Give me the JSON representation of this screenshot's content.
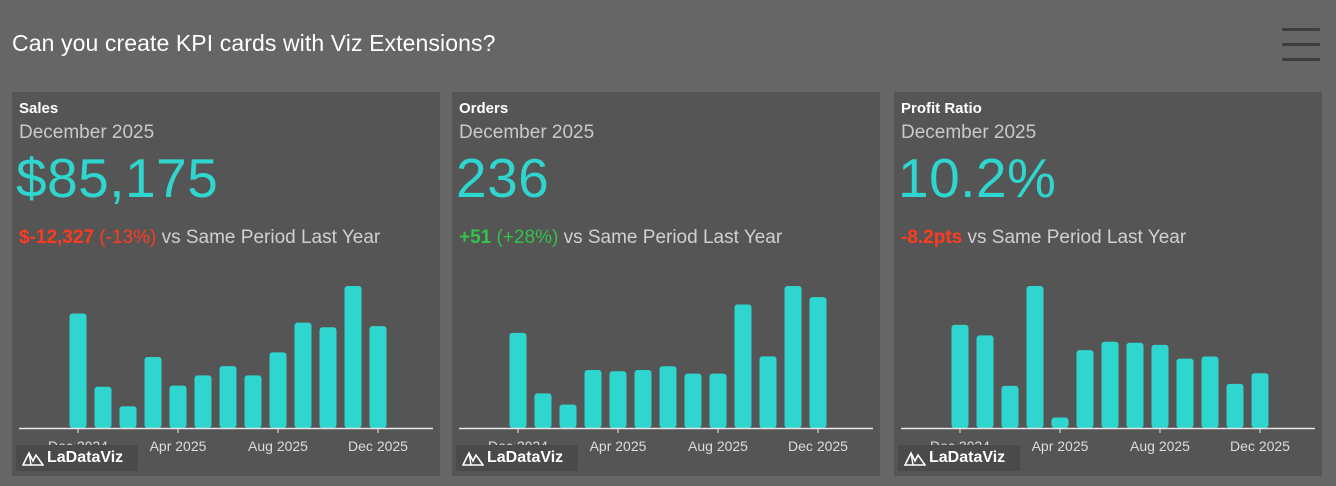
{
  "page": {
    "title": "Can you create KPI cards with Viz Extensions?"
  },
  "colors": {
    "background": "#666666",
    "card": "#555555",
    "accent": "#2fd6cf",
    "negative": "#ff3b1f",
    "positive": "#33c24a"
  },
  "icons": {
    "menu": "hamburger-icon",
    "logo": "ladataviz-logo-icon"
  },
  "logo_text": "LaDataViz",
  "cards": [
    {
      "title": "Sales",
      "period": "December 2025",
      "value": "$85,175",
      "delta_abs": "$-12,327",
      "delta_pct": " (-13%)",
      "delta_suffix": " vs Same Period Last Year",
      "delta_color": "#ff3b1f"
    },
    {
      "title": "Orders",
      "period": "December 2025",
      "value": "236",
      "delta_abs": "+51",
      "delta_pct": " (+28%)",
      "delta_suffix": " vs Same Period Last Year",
      "delta_color": "#33c24a"
    },
    {
      "title": "Profit Ratio",
      "period": "December 2025",
      "value": "10.2%",
      "delta_abs": "-8.2pts",
      "delta_pct": "",
      "delta_suffix": " vs Same Period Last Year",
      "delta_color": "#ff3b1f"
    }
  ],
  "chart_data": [
    {
      "type": "bar",
      "series": [
        {
          "name": "Sales",
          "values": [
            1.0,
            0.36,
            0.19,
            0.62,
            0.37,
            0.46,
            0.54,
            0.46,
            0.66,
            0.92,
            0.88,
            1.24,
            0.89
          ]
        }
      ],
      "categories": [
        "Dec 2024",
        "Jan 2025",
        "Feb 2025",
        "Mar 2025",
        "Apr 2025",
        "May 2025",
        "Jun 2025",
        "Jul 2025",
        "Aug 2025",
        "Sep 2025",
        "Oct 2025",
        "Nov 2025",
        "Dec 2025"
      ],
      "tick_labels": [
        "Dec 2024",
        "Apr 2025",
        "Aug 2025",
        "Dec 2025"
      ],
      "tick_indices": [
        0,
        4,
        8,
        12
      ],
      "ylim": [
        0,
        1.24
      ],
      "grid": false
    },
    {
      "type": "bar",
      "series": [
        {
          "name": "Orders",
          "values": [
            0.77,
            0.28,
            0.19,
            0.47,
            0.46,
            0.47,
            0.5,
            0.44,
            0.44,
            1.0,
            0.58,
            1.15,
            1.06
          ]
        }
      ],
      "categories": [
        "Dec 2024",
        "Jan 2025",
        "Feb 2025",
        "Mar 2025",
        "Apr 2025",
        "May 2025",
        "Jun 2025",
        "Jul 2025",
        "Aug 2025",
        "Sep 2025",
        "Oct 2025",
        "Nov 2025",
        "Dec 2025"
      ],
      "tick_labels": [
        "Dec 2024",
        "Apr 2025",
        "Aug 2025",
        "Dec 2025"
      ],
      "tick_indices": [
        0,
        4,
        8,
        12
      ],
      "ylim": [
        0,
        1.15
      ],
      "grid": false
    },
    {
      "type": "bar",
      "series": [
        {
          "name": "Profit Ratio",
          "values": [
            0.98,
            0.88,
            0.4,
            1.35,
            0.1,
            0.74,
            0.82,
            0.81,
            0.79,
            0.66,
            0.68,
            0.42,
            0.52
          ]
        }
      ],
      "categories": [
        "Dec 2024",
        "Jan 2025",
        "Feb 2025",
        "Mar 2025",
        "Apr 2025",
        "May 2025",
        "Jun 2025",
        "Jul 2025",
        "Aug 2025",
        "Sep 2025",
        "Oct 2025",
        "Nov 2025",
        "Dec 2025"
      ],
      "tick_labels": [
        "Dec 2024",
        "Apr 2025",
        "Aug 2025",
        "Dec 2025"
      ],
      "tick_indices": [
        0,
        4,
        8,
        12
      ],
      "ylim": [
        0,
        1.35
      ],
      "grid": false
    }
  ]
}
